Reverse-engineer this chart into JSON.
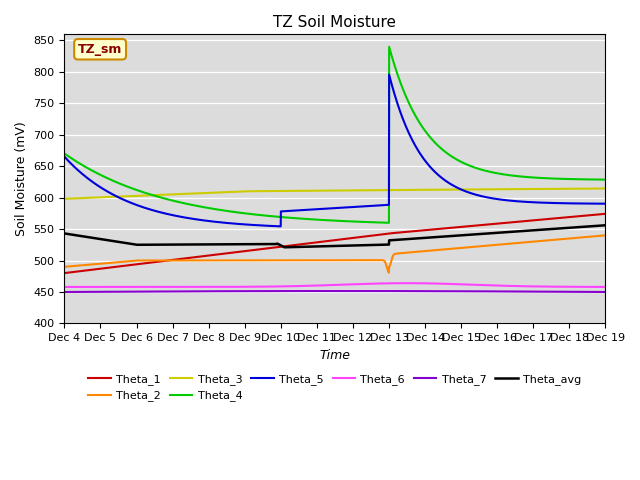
{
  "title": "TZ Soil Moisture",
  "ylabel": "Soil Moisture (mV)",
  "xlabel": "Time",
  "ylim": [
    400,
    860
  ],
  "yticks": [
    400,
    450,
    500,
    550,
    600,
    650,
    700,
    750,
    800,
    850
  ],
  "xlim": [
    0,
    15
  ],
  "xtick_labels": [
    "Dec 4",
    "Dec 5",
    "Dec 6",
    "Dec 7",
    "Dec 8",
    "Dec 9",
    "Dec 10",
    "Dec 11",
    "Dec 12",
    "Dec 13",
    "Dec 14",
    "Dec 15",
    "Dec 16",
    "Dec 17",
    "Dec 18",
    "Dec 19"
  ],
  "bg_color": "#dcdcdc",
  "legend_label": "TZ_sm",
  "series": {
    "Theta_1": {
      "color": "#cc0000",
      "lw": 1.5
    },
    "Theta_2": {
      "color": "#ff8800",
      "lw": 1.5
    },
    "Theta_3": {
      "color": "#cccc00",
      "lw": 1.5
    },
    "Theta_4": {
      "color": "#00cc00",
      "lw": 1.5
    },
    "Theta_5": {
      "color": "#0000dd",
      "lw": 1.5
    },
    "Theta_6": {
      "color": "#ff44ff",
      "lw": 1.5
    },
    "Theta_7": {
      "color": "#8800cc",
      "lw": 1.5
    },
    "Theta_avg": {
      "color": "#000000",
      "lw": 1.8
    }
  }
}
